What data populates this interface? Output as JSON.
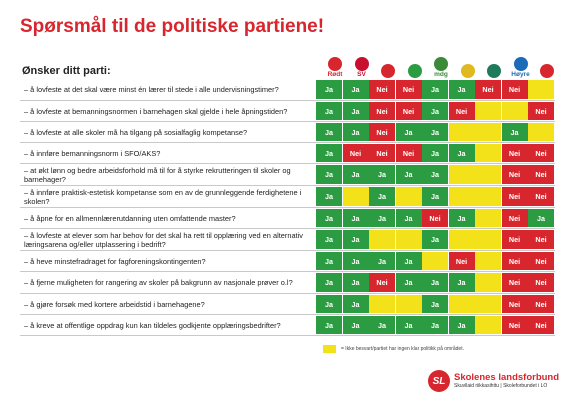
{
  "title": "Spørsmål til de politiske partiene!",
  "subtitle": "Ønsker ditt parti:",
  "colors": {
    "ja": "#2c9c42",
    "nei": "#d8262e",
    "unknown": "#f3e21a",
    "brand": "#d8262e"
  },
  "parties": [
    {
      "name": "Rødt",
      "icon": "rodt-star-icon",
      "label": "Rødt",
      "color": "#d8262e"
    },
    {
      "name": "SV",
      "icon": "sv-logo-icon",
      "label": "SV",
      "color": "#c8102e"
    },
    {
      "name": "Ap",
      "icon": "ap-rose-icon",
      "label": "",
      "color": "#d8262e"
    },
    {
      "name": "Sp",
      "icon": "sp-logo-icon",
      "label": "",
      "color": "#2c9c42"
    },
    {
      "name": "MDG",
      "icon": "mdg-logo-icon",
      "label": "mdg",
      "color": "#3a8a3a"
    },
    {
      "name": "KrF",
      "icon": "krf-logo-icon",
      "label": "",
      "color": "#e0b81f"
    },
    {
      "name": "V",
      "icon": "venstre-logo-icon",
      "label": "",
      "color": "#1f7a5c"
    },
    {
      "name": "Høyre",
      "icon": "hoyre-logo-icon",
      "label": "Høyre",
      "color": "#1b6bb8"
    },
    {
      "name": "FrP",
      "icon": "frp-logo-icon",
      "label": "",
      "color": "#d8262e"
    }
  ],
  "rows": [
    {
      "q": "– å lovfeste at det skal være minst én lærer til stede i alle undervisningstimer?",
      "a": [
        "Ja",
        "Ja",
        "Nei",
        "Nei",
        "Ja",
        "Ja",
        "Nei",
        "Nei",
        ""
      ]
    },
    {
      "q": "– å lovfeste at bemanningsnormen i barnehagen skal gjelde i hele åpningstiden?",
      "a": [
        "Ja",
        "Ja",
        "Nei",
        "Nei",
        "Ja",
        "Nei",
        "",
        "",
        "Nei"
      ]
    },
    {
      "q": "– å lovfeste at alle skoler må ha tilgang på sosialfaglig kompetanse?",
      "a": [
        "Ja",
        "Ja",
        "Nei",
        "Ja",
        "Ja",
        "",
        "",
        "Ja",
        ""
      ]
    },
    {
      "q": "– å innføre bemanningsnorm i SFO/AKS?",
      "a": [
        "Ja",
        "Nei",
        "Nei",
        "Nei",
        "Ja",
        "Ja",
        "",
        "Nei",
        "Nei"
      ]
    },
    {
      "q": "– at økt lønn og bedre arbeidsforhold må til for å styrke rekrutteringen til skoler og barnehager?",
      "a": [
        "Ja",
        "Ja",
        "Ja",
        "Ja",
        "Ja",
        "",
        "",
        "Nei",
        "Nei"
      ]
    },
    {
      "q": "– å innføre praktisk-estetisk kompetanse som en av de grunnleggende ferdighetene i skolen?",
      "a": [
        "Ja",
        "",
        "Ja",
        "",
        "Ja",
        "",
        "",
        "Nei",
        "Nei"
      ]
    },
    {
      "q": "– å åpne for en allmennlærerutdanning uten omfattende master?",
      "a": [
        "Ja",
        "Ja",
        "Ja",
        "Ja",
        "Nei",
        "Ja",
        "",
        "Nei",
        "Ja"
      ]
    },
    {
      "q": "– å lovfeste at elever som har behov for det skal ha rett til opplæring ved en alternativ læringsarena og/eller utplassering i bedrift?",
      "a": [
        "Ja",
        "Ja",
        "",
        "",
        "Ja",
        "",
        "",
        "Nei",
        "Nei"
      ]
    },
    {
      "q": "– å heve minstefradraget for fagforeningskontingenten?",
      "a": [
        "Ja",
        "Ja",
        "Ja",
        "Ja",
        "",
        "Nei",
        "",
        "Nei",
        "Nei"
      ]
    },
    {
      "q": "– å fjerne muligheten for rangering av skoler på bakgrunn av nasjonale prøver o.l?",
      "a": [
        "Ja",
        "Ja",
        "Nei",
        "Ja",
        "Ja",
        "Ja",
        "",
        "Nei",
        "Nei"
      ]
    },
    {
      "q": "– å gjøre forsøk med kortere arbeidstid i barnehagene?",
      "a": [
        "Ja",
        "Ja",
        "",
        "",
        "Ja",
        "",
        "",
        "Nei",
        "Nei"
      ]
    },
    {
      "q": "– å kreve at offentlige oppdrag kun kan tildeles godkjente opplæringsbedrifter?",
      "a": [
        "Ja",
        "Ja",
        "Ja",
        "Ja",
        "Ja",
        "Ja",
        "",
        "Nei",
        "Nei"
      ]
    }
  ],
  "legend": "= Ikke besvart/partiet har ingen klar politikk på området.",
  "footer": {
    "logo_letters": "SL",
    "name": "Skolenes landsforbund",
    "sub": "Skuvllaid riikkasihttu | Skoleforbundet i LO"
  }
}
